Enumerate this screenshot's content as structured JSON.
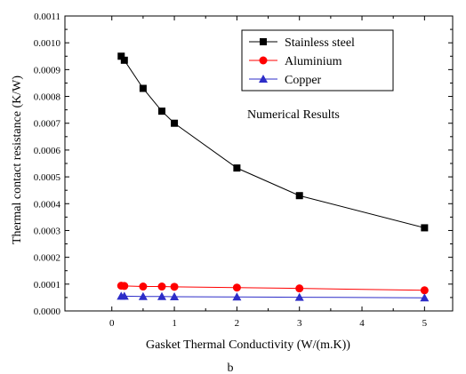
{
  "chart_data": {
    "type": "line",
    "title": "",
    "xlabel": "Gasket Thermal Conductivity (W/(m.K))",
    "ylabel": "Thermal contact resistance (K/W)",
    "xlim": [
      -0.75,
      5.45
    ],
    "ylim": [
      0,
      0.0011
    ],
    "x_ticks": [
      0,
      1,
      2,
      3,
      4,
      5
    ],
    "y_ticks": [
      0.0,
      0.0001,
      0.0002,
      0.0003,
      0.0004,
      0.0005,
      0.0006,
      0.0007,
      0.0008,
      0.0009,
      0.001,
      0.0011
    ],
    "x_tick_labels": [
      "0",
      "1",
      "2",
      "3",
      "4",
      "5"
    ],
    "y_tick_labels": [
      "0.0000",
      "0.0001",
      "0.0002",
      "0.0003",
      "0.0004",
      "0.0005",
      "0.0006",
      "0.0007",
      "0.0008",
      "0.0009",
      "0.0010",
      "0.0011"
    ],
    "grid": false,
    "legend_position": "top-right",
    "annotation": "Numerical Results",
    "caption": "b",
    "series": [
      {
        "name": "Stainless steel",
        "marker": "square",
        "color": "#000000",
        "x": [
          0.15,
          0.2,
          0.5,
          0.8,
          1.0,
          2.0,
          3.0,
          5.0
        ],
        "y": [
          0.00095,
          0.000935,
          0.00083,
          0.000745,
          0.0007,
          0.000533,
          0.00043,
          0.00031
        ]
      },
      {
        "name": "Aluminium",
        "marker": "circle",
        "color": "#ff0000",
        "x": [
          0.15,
          0.2,
          0.5,
          0.8,
          1.0,
          2.0,
          3.0,
          5.0
        ],
        "y": [
          9.4e-05,
          9.3e-05,
          9.1e-05,
          9.1e-05,
          9e-05,
          8.7e-05,
          8.4e-05,
          7.7e-05
        ]
      },
      {
        "name": "Copper",
        "marker": "triangle",
        "color": "#2d2dc8",
        "x": [
          0.15,
          0.2,
          0.5,
          0.8,
          1.0,
          2.0,
          3.0,
          5.0
        ],
        "y": [
          5.5e-05,
          5.5e-05,
          5.4e-05,
          5.4e-05,
          5.3e-05,
          5.2e-05,
          5.1e-05,
          4.9e-05
        ]
      }
    ]
  }
}
